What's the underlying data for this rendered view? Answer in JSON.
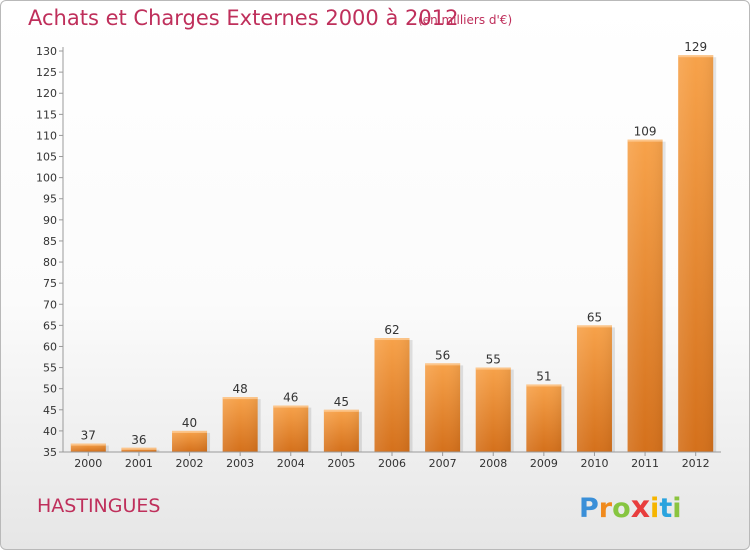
{
  "header": {
    "title": "Achats et Charges Externes 2000 à 2012",
    "unit": "(en milliers d'€)"
  },
  "footer": {
    "commune": "HASTINGUES",
    "logo_letters": [
      "P",
      "r",
      "o",
      "x",
      "i",
      "t",
      "i"
    ],
    "logo_colors": [
      "#3a8fd8",
      "#f08a1d",
      "#86c540",
      "#e83d3d",
      "#f6b500",
      "#2aa3de",
      "#8bc43f"
    ]
  },
  "colors": {
    "bar_top": "#f7a24a",
    "bar_bottom": "#d4701b",
    "axis": "#9a9a9a",
    "text": "#333333"
  },
  "chart_data": {
    "type": "bar",
    "categories": [
      "2000",
      "2001",
      "2002",
      "2003",
      "2004",
      "2005",
      "2006",
      "2007",
      "2008",
      "2009",
      "2010",
      "2011",
      "2012"
    ],
    "values": [
      37,
      36,
      40,
      48,
      46,
      45,
      62,
      56,
      55,
      51,
      65,
      109,
      129
    ],
    "data_labels": [
      "37",
      "36",
      "40",
      "48",
      "46",
      "45",
      "62",
      "56",
      "55",
      "51",
      "65",
      "109",
      "129"
    ],
    "yticks": [
      "35",
      "40",
      "45",
      "50",
      "55",
      "60",
      "65",
      "70",
      "75",
      "80",
      "85",
      "90",
      "95",
      "100",
      "105",
      "110",
      "115",
      "120",
      "125",
      "130"
    ],
    "ylim": [
      35,
      130
    ],
    "grid": false,
    "legend": "none"
  }
}
